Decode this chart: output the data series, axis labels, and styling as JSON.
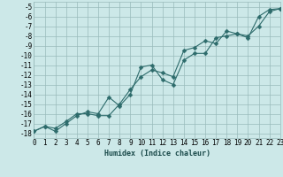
{
  "xlabel": "Humidex (Indice chaleur)",
  "bg_color": "#cce8e8",
  "grid_color": "#99bbbb",
  "line_color": "#2d6b6b",
  "xlim": [
    0,
    23
  ],
  "ylim": [
    -18.5,
    -4.5
  ],
  "xticks": [
    0,
    1,
    2,
    3,
    4,
    5,
    6,
    7,
    8,
    9,
    10,
    11,
    12,
    13,
    14,
    15,
    16,
    17,
    18,
    19,
    20,
    21,
    22,
    23
  ],
  "yticks": [
    -5,
    -6,
    -7,
    -8,
    -9,
    -10,
    -11,
    -12,
    -13,
    -14,
    -15,
    -16,
    -17,
    -18
  ],
  "line1_x": [
    0,
    1,
    2,
    3,
    4,
    5,
    6,
    7,
    8,
    9,
    10,
    11,
    12,
    13,
    14,
    15,
    16,
    17,
    18,
    19,
    20,
    21,
    22,
    23
  ],
  "line1_y": [
    -17.8,
    -17.3,
    -17.5,
    -16.8,
    -16.0,
    -16.0,
    -16.2,
    -16.2,
    -15.0,
    -13.5,
    -12.2,
    -11.5,
    -11.8,
    -12.2,
    -9.5,
    -9.2,
    -8.5,
    -8.8,
    -7.5,
    -7.8,
    -8.2,
    -6.0,
    -5.3,
    -5.2
  ],
  "line2_x": [
    0,
    1,
    2,
    3,
    4,
    5,
    6,
    7,
    8,
    9,
    10,
    11,
    12,
    13,
    14,
    15,
    16,
    17,
    18,
    19,
    20,
    21,
    22,
    23
  ],
  "line2_y": [
    -17.8,
    -17.3,
    -17.8,
    -17.0,
    -16.2,
    -15.8,
    -16.0,
    -14.3,
    -15.2,
    -14.0,
    -11.2,
    -11.0,
    -12.5,
    -13.0,
    -10.5,
    -9.8,
    -9.8,
    -8.2,
    -8.0,
    -7.8,
    -8.0,
    -7.0,
    -5.5,
    -5.2
  ],
  "markersize": 2.5,
  "linewidth": 0.8,
  "xlabel_fontsize": 6,
  "tick_fontsize": 5.5
}
